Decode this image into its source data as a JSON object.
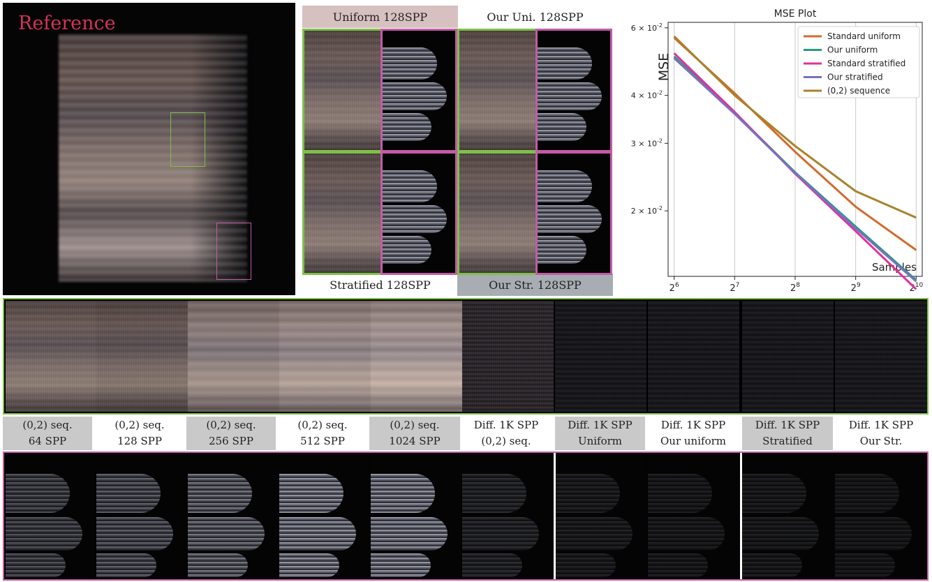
{
  "reference_label": "Reference",
  "headers": {
    "uniform": "Uniform 128SPP",
    "our_uni": "Our Uni. 128SPP",
    "stratified": "Stratified 128SPP",
    "our_str": "Our Str. 128SPP"
  },
  "colors": {
    "reference_text": "#d6325a",
    "green_frame": "#7fc04a",
    "magenta_frame": "#c35ca6",
    "uniform_header_bg": "#d6c1c0",
    "our_str_header_bg": "#a7adb3",
    "label_gray_bg": "#c9c9c9"
  },
  "bottom_labels": [
    {
      "line1": "(0,2) seq.",
      "line2": "64 SPP"
    },
    {
      "line1": "(0,2) seq.",
      "line2": "128 SPP"
    },
    {
      "line1": "(0,2) seq.",
      "line2": "256 SPP"
    },
    {
      "line1": "(0,2) seq.",
      "line2": "512 SPP"
    },
    {
      "line1": "(0,2) seq.",
      "line2": "1024 SPP"
    },
    {
      "line1": "Diff. 1K SPP",
      "line2": "(0,2) seq."
    },
    {
      "line1": "Diff. 1K SPP",
      "line2": "Uniform"
    },
    {
      "line1": "Diff. 1K SPP",
      "line2": "Our uniform"
    },
    {
      "line1": "Diff. 1K SPP",
      "line2": "Stratified"
    },
    {
      "line1": "Diff. 1K SPP",
      "line2": "Our Str."
    }
  ],
  "chart_data": {
    "type": "line",
    "title": "MSE Plot",
    "ylabel": "MSE",
    "xlabel": "Samples",
    "x_scale": "log2",
    "y_scale": "log",
    "x": [
      64,
      128,
      256,
      512,
      1024
    ],
    "x_tick_labels": [
      "2^6",
      "2^7",
      "2^8",
      "2^9",
      "2^10"
    ],
    "y_ticks": [
      0.02,
      0.03,
      0.04,
      0.06
    ],
    "y_tick_labels": [
      "2 × 10^-2",
      "3 × 10^-2",
      "4 × 10^-2",
      "6 × 10^-2"
    ],
    "ylim": [
      0.0135,
      0.062
    ],
    "grid": "vertical",
    "legend_position": "top-right",
    "series": [
      {
        "name": "Standard uniform",
        "color": "#d4692a",
        "values": [
          0.0565,
          0.0405,
          0.0285,
          0.0205,
          0.0158
        ]
      },
      {
        "name": "Our uniform",
        "color": "#2a9a7f",
        "values": [
          0.0505,
          0.036,
          0.0252,
          0.0182,
          0.0132
        ]
      },
      {
        "name": "Standard stratified",
        "color": "#e0319a",
        "values": [
          0.0515,
          0.0362,
          0.025,
          0.0177,
          0.0125
        ]
      },
      {
        "name": "Our stratified",
        "color": "#7a70c0",
        "values": [
          0.05,
          0.0358,
          0.0251,
          0.018,
          0.0131
        ]
      },
      {
        "name": "(0,2) sequence",
        "color": "#a8822c",
        "values": [
          0.057,
          0.04,
          0.0295,
          0.0225,
          0.0192
        ]
      }
    ]
  }
}
